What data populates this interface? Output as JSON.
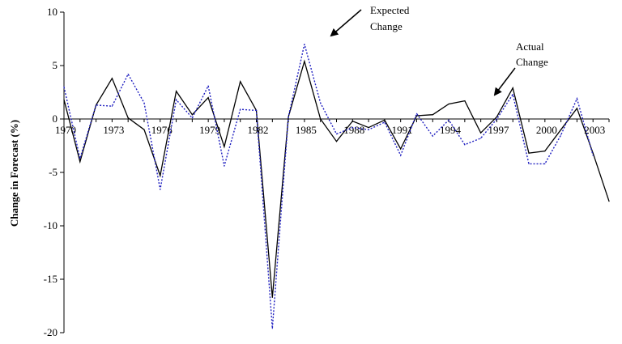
{
  "chart_data": {
    "type": "line",
    "title": "",
    "xlabel": "",
    "ylabel": "Change in Forecast (%)",
    "ylim": [
      -20,
      10
    ],
    "yticks": [
      10,
      5,
      0,
      -5,
      -10,
      -15,
      -20
    ],
    "xlim": [
      1970,
      2004
    ],
    "xticks": [
      1970,
      1973,
      1976,
      1979,
      1982,
      1985,
      1988,
      1991,
      1994,
      1997,
      2000,
      2003
    ],
    "grid": false,
    "series": [
      {
        "name": "Actual Change",
        "style": "solid",
        "color": "#000000",
        "x": [
          1970,
          1971,
          1972,
          1973,
          1974,
          1975,
          1976,
          1977,
          1978,
          1979,
          1980,
          1981,
          1982,
          1983,
          1984,
          1985,
          1986,
          1987,
          1988,
          1989,
          1990,
          1991,
          1992,
          1993,
          1994,
          1995,
          1996,
          1997,
          1998,
          1999,
          2000,
          2001,
          2002,
          2003,
          2004
        ],
        "values": [
          1.8,
          -4.0,
          1.3,
          3.8,
          0.1,
          -1.0,
          -5.3,
          2.6,
          0.4,
          2.0,
          -2.6,
          3.5,
          0.8,
          -16.7,
          0.2,
          5.4,
          0.0,
          -2.1,
          -0.2,
          -0.8,
          -0.1,
          -2.8,
          0.3,
          0.4,
          1.4,
          1.7,
          -1.3,
          0.2,
          2.9,
          -3.2,
          -3.0,
          -1.0,
          1.0,
          -3.2,
          -7.7
        ]
      },
      {
        "name": "Expected Change",
        "style": "dotted",
        "color": "#1f1fc0",
        "x": [
          1970,
          1971,
          1972,
          1973,
          1974,
          1975,
          1976,
          1977,
          1978,
          1979,
          1980,
          1981,
          1982,
          1983,
          1984,
          1985,
          1986,
          1987,
          1988,
          1989,
          1990,
          1991,
          1992,
          1993,
          1994,
          1995,
          1996,
          1997,
          1998,
          1999,
          2000,
          2001,
          2002,
          2003
        ],
        "values": [
          3.0,
          -3.7,
          1.3,
          1.2,
          4.2,
          1.5,
          -6.6,
          1.8,
          0.1,
          3.1,
          -4.4,
          0.9,
          0.8,
          -19.6,
          0.2,
          7.0,
          1.5,
          -1.4,
          -0.8,
          -1.0,
          -0.3,
          -3.4,
          0.5,
          -1.6,
          -0.1,
          -2.4,
          -1.8,
          0.0,
          2.3,
          -4.2,
          -4.2,
          -1.5,
          1.9,
          -3.4
        ]
      }
    ],
    "annotations": [
      {
        "text_lines": [
          "Expected",
          "Change"
        ],
        "points_to_series": "Expected Change"
      },
      {
        "text_lines": [
          "Actual",
          "Change"
        ],
        "points_to_series": "Actual Change"
      }
    ]
  }
}
